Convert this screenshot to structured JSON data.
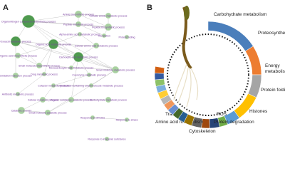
{
  "panel_labels": [
    "A",
    "B"
  ],
  "network": {
    "nodes": [
      "Organonitrogen compound biosynthetic process",
      "Amide biosynthetic process",
      "Cellular amide metabolic process",
      "Peptide metabolic process",
      "Peptide biosynthetic process",
      "Alpha-amino acid metabolic process",
      "Translation",
      "Protein folding",
      "Oxoacid metabolic process",
      "Organic acid metabolic process",
      "Cellular amino acid metabolic process",
      "Organic acid biosynthetic process",
      "Carboxylic acid metabolic process",
      "Small molecule biosynthetic process",
      "Monocarboxylic acid metabolic process",
      "Small molecule metabolic process",
      "Drug metabolic process",
      "Coenzyme metabolic process",
      "Oxidation-reduction process",
      "Cofactor metabolic process",
      "Nucleotide-containing small molecule metabolic process",
      "Antibiotic metabolic process",
      "Cellular metabolic process",
      "Organic substance catabolic process",
      "Carbohydrate metabolic process",
      "Catabolic process",
      "Small molecule catabolic process",
      "Response to stimulus",
      "Response to stress",
      "Response to inorganic substance"
    ]
  },
  "chart_data": {
    "type": "donut",
    "categories": [
      "Carbohydrate metabolism",
      "Proteosynthesis",
      "Energy metabolism",
      "Protein folding",
      "Histones",
      "ROS",
      "Protein degradation",
      "Cytoskeleton",
      "Amino acid metabolism",
      "Transport",
      null,
      null,
      null,
      null,
      null,
      null,
      null,
      null,
      null,
      null
    ],
    "values": [
      16,
      9,
      7,
      8,
      4,
      2.5,
      3,
      2.5,
      3,
      2.5,
      2,
      2,
      2,
      2,
      2,
      2,
      2,
      2,
      2,
      2
    ],
    "colors": [
      "#4a7ebb",
      "#ed7d31",
      "#a5a5a5",
      "#ffc000",
      "#5b9bd5",
      "#70ad47",
      "#264478",
      "#9e480e",
      "#636363",
      "#997300",
      "#255e91",
      "#43682b",
      "#698ed0",
      "#f1975a",
      "#b7b7b7",
      "#ffcd33",
      "#7cafdd",
      "#8cc168",
      "#335aa1",
      "#d26012"
    ]
  }
}
